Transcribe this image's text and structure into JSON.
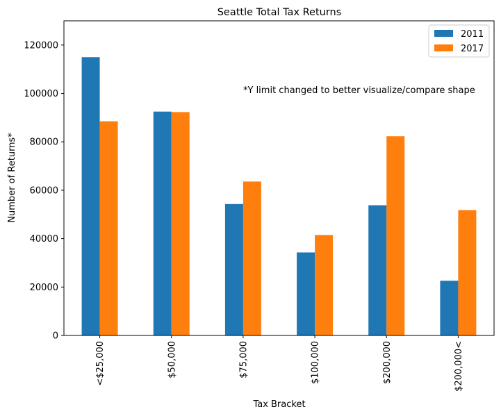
{
  "chart_data": {
    "type": "bar",
    "title": "Seattle Total Tax Returns",
    "xlabel": "Tax Bracket",
    "ylabel": "Number of Returns*",
    "annotation": "*Y limit changed to better visualize/compare shape",
    "categories": [
      "<$25,000",
      "$50,000",
      "$75,000",
      "$100,000",
      "$200,000",
      "$200,000<"
    ],
    "series": [
      {
        "name": "2011",
        "color": "#1f77b4",
        "values": [
          115000,
          92500,
          54300,
          34300,
          53800,
          22600
        ]
      },
      {
        "name": "2017",
        "color": "#ff7f0e",
        "values": [
          88500,
          92300,
          63600,
          41500,
          82300,
          51800
        ]
      }
    ],
    "ylim": [
      0,
      130000
    ],
    "yticks": [
      0,
      20000,
      40000,
      60000,
      80000,
      100000,
      120000
    ],
    "ytick_labels": [
      "0",
      "20000",
      "40000",
      "60000",
      "80000",
      "100000",
      "120000"
    ],
    "grid": false,
    "legend_position": "top-right"
  }
}
